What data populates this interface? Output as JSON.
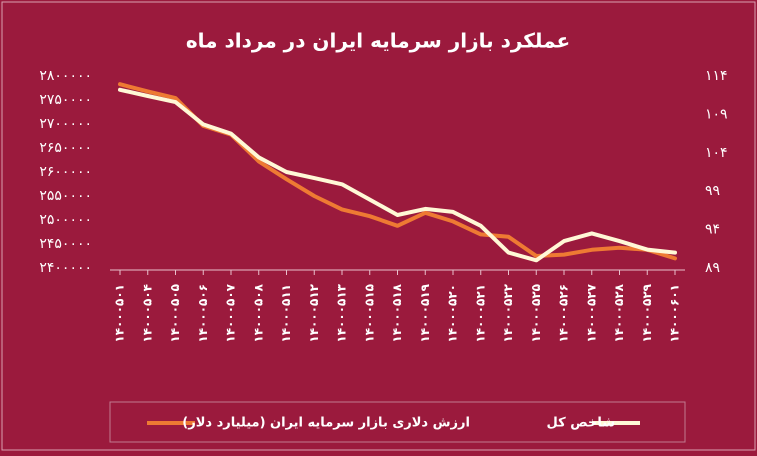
{
  "chart_data": {
    "type": "line",
    "title": "عملکرد بازار سرمایه ایران در مرداد ماه",
    "categories": [
      "۱۴۰۰۰۵۰۱",
      "۱۴۰۰۰۵۰۴",
      "۱۴۰۰۰۵۰۵",
      "۱۴۰۰۰۵۰۶",
      "۱۴۰۰۰۵۰۷",
      "۱۴۰۰۰۵۰۸",
      "۱۴۰۰۰۵۱۱",
      "۱۴۰۰۰۵۱۲",
      "۱۴۰۰۰۵۱۳",
      "۱۴۰۰۰۵۱۵",
      "۱۴۰۰۰۵۱۸",
      "۱۴۰۰۰۵۱۹",
      "۱۴۰۰۰۵۲۰",
      "۱۴۰۰۰۵۲۱",
      "۱۴۰۰۰۵۲۲",
      "۱۴۰۰۰۵۲۵",
      "۱۴۰۰۰۵۲۶",
      "۱۴۰۰۰۵۲۷",
      "۱۴۰۰۰۵۲۸",
      "۱۴۰۰۰۵۲۹",
      "۱۴۰۰۰۶۰۱"
    ],
    "series": [
      {
        "name": "ارزش دلاری بازار سرمایه ایران (میلیارد دلار)",
        "color": "#ee7a33",
        "values": [
          2783000,
          2768000,
          2754000,
          2696000,
          2678000,
          2622000,
          2585000,
          2550000,
          2522000,
          2508000,
          2488000,
          2515000,
          2497000,
          2470000,
          2465000,
          2425000,
          2428000,
          2438000,
          2442000,
          2438000,
          2420000
        ]
      },
      {
        "name": "شاخص کل",
        "color": "#fff8d6",
        "axis": "y2",
        "values": [
          112.2,
          111.4,
          110.6,
          107.7,
          106.5,
          103.4,
          101.5,
          100.7,
          99.9,
          97.9,
          95.9,
          96.7,
          96.3,
          94.5,
          91.0,
          90.0,
          92.5,
          93.5,
          92.5,
          91.4,
          91.0
        ]
      }
    ],
    "ylim": [
      2400000,
      2800000
    ],
    "yticks": [
      {
        "value": 2400000,
        "label": "۲۴۰۰۰۰۰"
      },
      {
        "value": 2450000,
        "label": "۲۴۵۰۰۰۰"
      },
      {
        "value": 2500000,
        "label": "۲۵۰۰۰۰۰"
      },
      {
        "value": 2550000,
        "label": "۲۵۵۰۰۰۰"
      },
      {
        "value": 2600000,
        "label": "۲۶۰۰۰۰۰"
      },
      {
        "value": 2650000,
        "label": "۲۶۵۰۰۰۰"
      },
      {
        "value": 2700000,
        "label": "۲۷۰۰۰۰۰"
      },
      {
        "value": 2750000,
        "label": "۲۷۵۰۰۰۰"
      },
      {
        "value": 2800000,
        "label": "۲۸۰۰۰۰۰"
      }
    ],
    "y2lim": [
      89,
      114
    ],
    "y2ticks": [
      {
        "value": 89,
        "label": "۸۹"
      },
      {
        "value": 94,
        "label": "۹۴"
      },
      {
        "value": 99,
        "label": "۹۹"
      },
      {
        "value": 104,
        "label": "۱۰۴"
      },
      {
        "value": 109,
        "label": "۱۰۹"
      },
      {
        "value": 114,
        "label": "۱۱۴"
      }
    ],
    "legend": "bottom"
  }
}
